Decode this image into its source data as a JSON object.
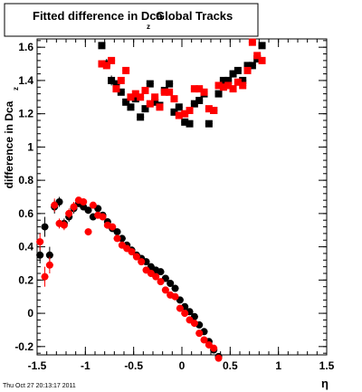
{
  "chart_data": {
    "type": "scatter",
    "title_main": "Fitted difference in Dca",
    "title_sub": "z",
    "title_tail": "Global Tracks",
    "ylabel_main": "difference in Dca",
    "ylabel_sub": "z",
    "xlabel": "η",
    "footer": "Thu Oct 27 20:13:17 2011",
    "xlim": [
      -1.5,
      1.5
    ],
    "ylim": [
      -0.25,
      1.65
    ],
    "x_ticks": [
      -1.5,
      -1,
      -0.5,
      0,
      0.5,
      1,
      1.5
    ],
    "x_tick_labels": [
      "-1.5",
      "-1",
      "-0.5",
      "0",
      "0.5",
      "1",
      "1.5"
    ],
    "y_ticks": [
      -0.2,
      0,
      0.2,
      0.4,
      0.6,
      0.8,
      1,
      1.2,
      1.4,
      1.6
    ],
    "y_tick_labels": [
      "-0.2",
      "0",
      "0.2",
      "0.4",
      "0.6",
      "0.8",
      "1",
      "1.2",
      "1.4",
      "1.6"
    ],
    "grid": false,
    "series": [
      {
        "color": "#000000",
        "marker": "square",
        "points": [
          [
            -0.83,
            1.61,
            0.02
          ],
          [
            -0.78,
            1.5,
            0.03
          ],
          [
            -0.73,
            1.4,
            0.03
          ],
          [
            -0.68,
            1.38,
            0.02
          ],
          [
            -0.63,
            1.33,
            0.02
          ],
          [
            -0.58,
            1.27,
            0.02
          ],
          [
            -0.53,
            1.24,
            0.02
          ],
          [
            -0.48,
            1.29,
            0.02
          ],
          [
            -0.43,
            1.18,
            0.02
          ],
          [
            -0.38,
            1.23,
            0.02
          ],
          [
            -0.33,
            1.38,
            0.02
          ],
          [
            -0.28,
            1.27,
            0.02
          ],
          [
            -0.23,
            1.25,
            0.02
          ],
          [
            -0.18,
            1.34,
            0.02
          ],
          [
            -0.13,
            1.38,
            0.02
          ],
          [
            -0.08,
            1.21,
            0.02
          ],
          [
            -0.03,
            1.24,
            0.02
          ],
          [
            0.03,
            1.15,
            0.02
          ],
          [
            0.08,
            1.14,
            0.02
          ],
          [
            0.13,
            1.26,
            0.02
          ],
          [
            0.18,
            1.28,
            0.02
          ],
          [
            0.23,
            1.32,
            0.02
          ],
          [
            0.28,
            1.14,
            0.02
          ],
          [
            0.33,
            1.22,
            0.02
          ],
          [
            0.38,
            1.32,
            0.02
          ],
          [
            0.43,
            1.4,
            0.02
          ],
          [
            0.48,
            1.4,
            0.02
          ],
          [
            0.53,
            1.44,
            0.02
          ],
          [
            0.58,
            1.46,
            0.02
          ],
          [
            0.63,
            1.4,
            0.02
          ],
          [
            0.68,
            1.49,
            0.02
          ],
          [
            0.73,
            1.49,
            0.02
          ],
          [
            0.78,
            1.53,
            0.02
          ],
          [
            0.83,
            1.61,
            0.02
          ],
          [
            -1.47,
            0.35,
            0.05
          ],
          [
            -1.42,
            0.52,
            0.06
          ],
          [
            -1.37,
            0.35,
            0.05
          ],
          [
            -1.32,
            0.64,
            0.04
          ],
          [
            -1.27,
            0.67,
            0.03
          ],
          [
            -1.22,
            0.54,
            0.03
          ],
          [
            -1.17,
            0.58,
            0.03
          ],
          [
            -1.12,
            0.63,
            0.03
          ],
          [
            -1.07,
            0.66,
            0.02
          ],
          [
            -1.02,
            0.64,
            0.02
          ],
          [
            -0.97,
            0.62,
            0.02
          ],
          [
            -0.92,
            0.58,
            0.02
          ],
          [
            -0.87,
            0.63,
            0.02
          ],
          [
            -0.82,
            0.59,
            0.02
          ],
          [
            -0.77,
            0.55,
            0.02
          ],
          [
            -0.72,
            0.51,
            0.02
          ],
          [
            -0.67,
            0.49,
            0.02
          ],
          [
            -0.62,
            0.45,
            0.02
          ],
          [
            -0.57,
            0.41,
            0.02
          ],
          [
            -0.52,
            0.38,
            0.02
          ],
          [
            -0.47,
            0.35,
            0.02
          ],
          [
            -0.42,
            0.33,
            0.02
          ],
          [
            -0.37,
            0.31,
            0.02
          ],
          [
            -0.32,
            0.28,
            0.02
          ],
          [
            -0.27,
            0.26,
            0.02
          ],
          [
            -0.22,
            0.25,
            0.02
          ],
          [
            -0.17,
            0.21,
            0.02
          ],
          [
            -0.12,
            0.18,
            0.02
          ],
          [
            -0.07,
            0.15,
            0.02
          ],
          [
            -0.02,
            0.08,
            0.02
          ],
          [
            0.03,
            0.04,
            0.02
          ],
          [
            0.08,
            0.01,
            0.02
          ],
          [
            0.13,
            -0.02,
            0.02
          ],
          [
            0.18,
            -0.07,
            0.02
          ],
          [
            0.23,
            -0.11,
            0.02
          ],
          [
            0.28,
            -0.17,
            0.02
          ],
          [
            0.33,
            -0.22,
            0.02
          ],
          [
            0.38,
            -0.26,
            0.02
          ]
        ]
      },
      {
        "color": "#ff0000",
        "marker": "square",
        "points": [
          [
            -0.83,
            1.5,
            0.02
          ],
          [
            -0.78,
            1.49,
            0.02
          ],
          [
            -0.73,
            1.52,
            0.02
          ],
          [
            -0.68,
            1.35,
            0.02
          ],
          [
            -0.63,
            1.4,
            0.02
          ],
          [
            -0.58,
            1.46,
            0.02
          ],
          [
            -0.53,
            1.3,
            0.02
          ],
          [
            -0.48,
            1.32,
            0.02
          ],
          [
            -0.43,
            1.3,
            0.02
          ],
          [
            -0.38,
            1.34,
            0.02
          ],
          [
            -0.33,
            1.26,
            0.02
          ],
          [
            -0.28,
            1.3,
            0.02
          ],
          [
            -0.23,
            1.24,
            0.02
          ],
          [
            -0.18,
            1.33,
            0.02
          ],
          [
            -0.13,
            1.33,
            0.02
          ],
          [
            -0.08,
            1.29,
            0.02
          ],
          [
            -0.03,
            1.19,
            0.02
          ],
          [
            0.03,
            1.2,
            0.02
          ],
          [
            0.08,
            1.22,
            0.02
          ],
          [
            0.13,
            1.35,
            0.02
          ],
          [
            0.18,
            1.35,
            0.02
          ],
          [
            0.23,
            1.33,
            0.02
          ],
          [
            0.28,
            1.23,
            0.02
          ],
          [
            0.33,
            1.22,
            0.02
          ],
          [
            0.38,
            1.37,
            0.02
          ],
          [
            0.43,
            1.36,
            0.02
          ],
          [
            0.48,
            1.37,
            0.02
          ],
          [
            0.53,
            1.35,
            0.02
          ],
          [
            0.58,
            1.39,
            0.02
          ],
          [
            0.63,
            1.37,
            0.02
          ],
          [
            0.68,
            1.46,
            0.02
          ],
          [
            0.73,
            1.63,
            0.02
          ],
          [
            0.78,
            1.55,
            0.02
          ],
          [
            0.83,
            1.52,
            0.02
          ],
          [
            -1.47,
            0.43,
            0.05
          ],
          [
            -1.42,
            0.22,
            0.06
          ],
          [
            -1.37,
            0.29,
            0.05
          ],
          [
            -1.32,
            0.65,
            0.04
          ],
          [
            -1.27,
            0.54,
            0.03
          ],
          [
            -1.22,
            0.53,
            0.03
          ],
          [
            -1.17,
            0.6,
            0.03
          ],
          [
            -1.12,
            0.64,
            0.03
          ],
          [
            -1.07,
            0.68,
            0.02
          ],
          [
            -1.02,
            0.67,
            0.02
          ],
          [
            -0.97,
            0.49,
            0.02
          ],
          [
            -0.92,
            0.65,
            0.02
          ],
          [
            -0.87,
            0.59,
            0.02
          ],
          [
            -0.82,
            0.58,
            0.02
          ],
          [
            -0.77,
            0.53,
            0.02
          ],
          [
            -0.72,
            0.52,
            0.02
          ],
          [
            -0.67,
            0.45,
            0.02
          ],
          [
            -0.62,
            0.41,
            0.02
          ],
          [
            -0.57,
            0.39,
            0.02
          ],
          [
            -0.52,
            0.37,
            0.02
          ],
          [
            -0.47,
            0.34,
            0.02
          ],
          [
            -0.42,
            0.31,
            0.02
          ],
          [
            -0.37,
            0.26,
            0.02
          ],
          [
            -0.32,
            0.24,
            0.02
          ],
          [
            -0.27,
            0.22,
            0.02
          ],
          [
            -0.22,
            0.19,
            0.02
          ],
          [
            -0.17,
            0.14,
            0.02
          ],
          [
            -0.12,
            0.11,
            0.02
          ],
          [
            -0.07,
            0.1,
            0.02
          ],
          [
            -0.02,
            0.03,
            0.02
          ],
          [
            0.03,
            0.0,
            0.02
          ],
          [
            0.08,
            -0.04,
            0.02
          ],
          [
            0.13,
            -0.06,
            0.02
          ],
          [
            0.18,
            -0.12,
            0.02
          ],
          [
            0.23,
            -0.16,
            0.02
          ],
          [
            0.28,
            -0.19,
            0.02
          ],
          [
            0.33,
            -0.21,
            0.02
          ],
          [
            0.38,
            -0.27,
            0.02
          ]
        ]
      }
    ]
  }
}
